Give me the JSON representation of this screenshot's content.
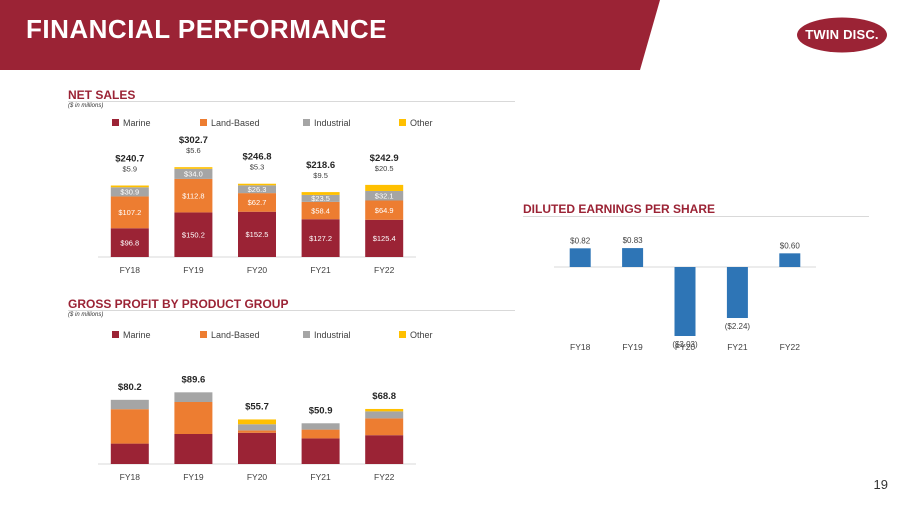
{
  "header": {
    "title": "FINANCIAL PERFORMANCE",
    "logo_text": "TWIN DISC."
  },
  "page_number": "19",
  "colors": {
    "marine": "#9b2335",
    "land": "#ed7d31",
    "industrial": "#a5a5a5",
    "other": "#ffc000",
    "eps": "#2e75b6",
    "brand": "#9b2335"
  },
  "net_sales": {
    "title": "NET SALES",
    "subtitle": "($ in millions)",
    "legend": [
      "Marine",
      "Land-Based",
      "Industrial",
      "Other"
    ]
  },
  "gross_profit": {
    "title": "GROSS PROFIT BY PRODUCT GROUP",
    "subtitle": "($ in millions)",
    "legend": [
      "Marine",
      "Land-Based",
      "Industrial",
      "Other"
    ]
  },
  "eps": {
    "title": "DILUTED EARNINGS PER SHARE"
  },
  "chart_data": [
    {
      "id": "net_sales",
      "type": "bar",
      "stacked": true,
      "title": "NET SALES",
      "ylabel": "($ in millions)",
      "categories": [
        "FY18",
        "FY19",
        "FY20",
        "FY21",
        "FY22"
      ],
      "series": [
        {
          "name": "Marine",
          "values": [
            96.8,
            150.2,
            152.5,
            127.2,
            125.4
          ],
          "labels": [
            "$96.8",
            "$150.2",
            "$152.5",
            "$127.2",
            "$125.4"
          ]
        },
        {
          "name": "Land-Based",
          "values": [
            107.2,
            112.8,
            62.7,
            58.4,
            64.9
          ],
          "labels": [
            "$107.2",
            "$112.8",
            "$62.7",
            "$58.4",
            "$64.9"
          ]
        },
        {
          "name": "Industrial",
          "values": [
            30.9,
            34.0,
            26.3,
            23.5,
            32.1
          ],
          "labels": [
            "$30.9",
            "$34.0",
            "$26.3",
            "$23.5",
            "$32.1"
          ]
        },
        {
          "name": "Other",
          "values": [
            5.9,
            5.6,
            5.3,
            9.5,
            20.5
          ],
          "labels": [
            "$5.9",
            "$5.6",
            "$5.3",
            "$9.5",
            "$20.5"
          ]
        }
      ],
      "totals": [
        240.7,
        302.7,
        246.8,
        218.6,
        242.9
      ],
      "total_labels": [
        "$240.7",
        "$302.7",
        "$246.8",
        "$218.6",
        "$242.9"
      ],
      "ylim": [
        0,
        320
      ],
      "legend_position": "top"
    },
    {
      "id": "gross_profit",
      "type": "bar",
      "stacked": true,
      "title": "GROSS PROFIT BY PRODUCT GROUP",
      "ylabel": "($ in millions)",
      "categories": [
        "FY18",
        "FY19",
        "FY20",
        "FY21",
        "FY22"
      ],
      "series": [
        {
          "name": "Marine",
          "values": [
            25.5,
            37.5,
            39.0,
            32.0,
            36.0
          ]
        },
        {
          "name": "Land-Based",
          "values": [
            43.0,
            40.0,
            3.0,
            11.0,
            21.0
          ]
        },
        {
          "name": "Industrial",
          "values": [
            11.7,
            12.1,
            7.7,
            7.9,
            8.8
          ]
        },
        {
          "name": "Other",
          "values": [
            0.0,
            0.0,
            6.0,
            0.0,
            3.0
          ]
        }
      ],
      "totals": [
        80.2,
        89.6,
        55.7,
        50.9,
        68.8
      ],
      "total_labels": [
        "$80.2",
        "$89.6",
        "$55.7",
        "$50.9",
        "$68.8"
      ],
      "ylim": [
        0,
        100
      ],
      "legend_position": "top"
    },
    {
      "id": "eps",
      "type": "bar",
      "title": "DILUTED EARNINGS PER SHARE",
      "categories": [
        "FY18",
        "FY19",
        "FY20",
        "FY21",
        "FY22"
      ],
      "values": [
        0.82,
        0.83,
        -3.03,
        -2.24,
        0.6
      ],
      "labels": [
        "$0.82",
        "$0.83",
        "($3.03)",
        "($2.24)",
        "$0.60"
      ],
      "ylim": [
        -3.5,
        1.0
      ]
    }
  ]
}
